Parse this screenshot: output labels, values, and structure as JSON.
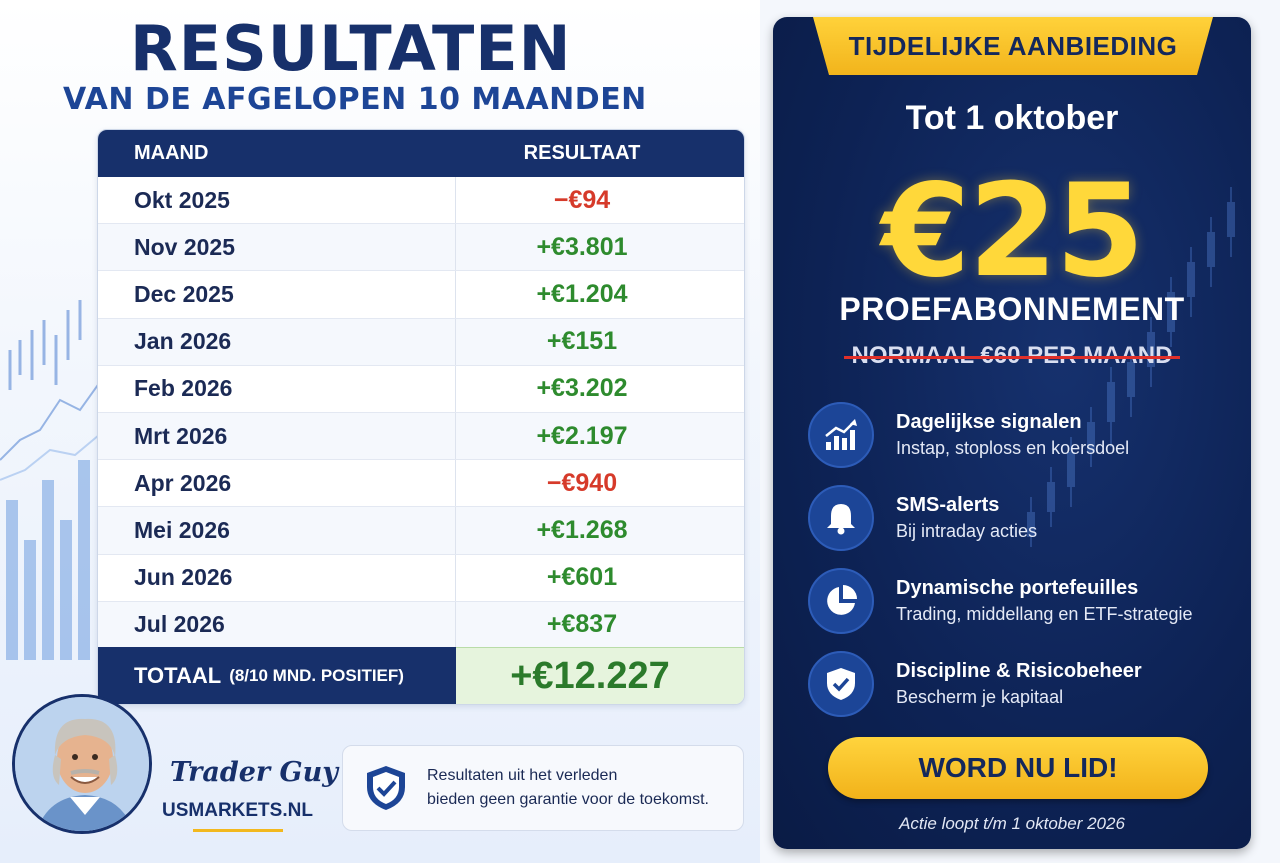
{
  "header": {
    "title": "RESULTATEN",
    "subtitle": "VAN DE AFGELOPEN 10 MAANDEN"
  },
  "table": {
    "col_month": "MAAND",
    "col_result": "RESULTAAT",
    "rows": [
      {
        "month": "Okt 2025",
        "result": "−€94",
        "sign": "neg"
      },
      {
        "month": "Nov 2025",
        "result": "+€3.801",
        "sign": "pos"
      },
      {
        "month": "Dec 2025",
        "result": "+€1.204",
        "sign": "pos"
      },
      {
        "month": "Jan 2026",
        "result": "+€151",
        "sign": "pos"
      },
      {
        "month": "Feb 2026",
        "result": "+€3.202",
        "sign": "pos"
      },
      {
        "month": "Mrt 2026",
        "result": "+€2.197",
        "sign": "pos"
      },
      {
        "month": "Apr 2026",
        "result": "−€940",
        "sign": "neg"
      },
      {
        "month": "Mei 2026",
        "result": "+€1.268",
        "sign": "pos"
      },
      {
        "month": "Jun 2026",
        "result": "+€601",
        "sign": "pos"
      },
      {
        "month": "Jul 2026",
        "result": "+€837",
        "sign": "pos"
      }
    ],
    "total_label": "TOTAAL",
    "total_note": "(8/10 MND. POSITIEF)",
    "total_value": "+€12.227"
  },
  "trader": {
    "name": "Trader Guy",
    "site": "USMARKETS.NL"
  },
  "disclaimer": {
    "line1": "Resultaten uit het verleden",
    "line2": "bieden geen garantie voor de toekomst."
  },
  "offer": {
    "ribbon": "TIJDELIJKE AANBIEDING",
    "until": "Tot 1 oktober",
    "price": "€25",
    "trial": "PROEFABONNEMENT",
    "normal": "NORMAAL €60 PER MAAND",
    "features": [
      {
        "title": "Dagelijkse signalen",
        "sub": "Instap, stoploss en koersdoel",
        "icon": "chart-up-icon"
      },
      {
        "title": "SMS-alerts",
        "sub": "Bij intraday acties",
        "icon": "bell-icon"
      },
      {
        "title": "Dynamische portefeuilles",
        "sub": "Trading, middellang en ETF-strategie",
        "icon": "pie-chart-icon"
      },
      {
        "title": "Discipline & Risicobeheer",
        "sub": "Bescherm je kapitaal",
        "icon": "shield-check-icon"
      }
    ],
    "cta": "WORD NU LID!",
    "note": "Actie loopt t/m 1 oktober 2026"
  },
  "colors": {
    "navy": "#17306b",
    "gold": "#ffd43d",
    "positive": "#2e8b2e",
    "negative": "#d63a2a"
  }
}
